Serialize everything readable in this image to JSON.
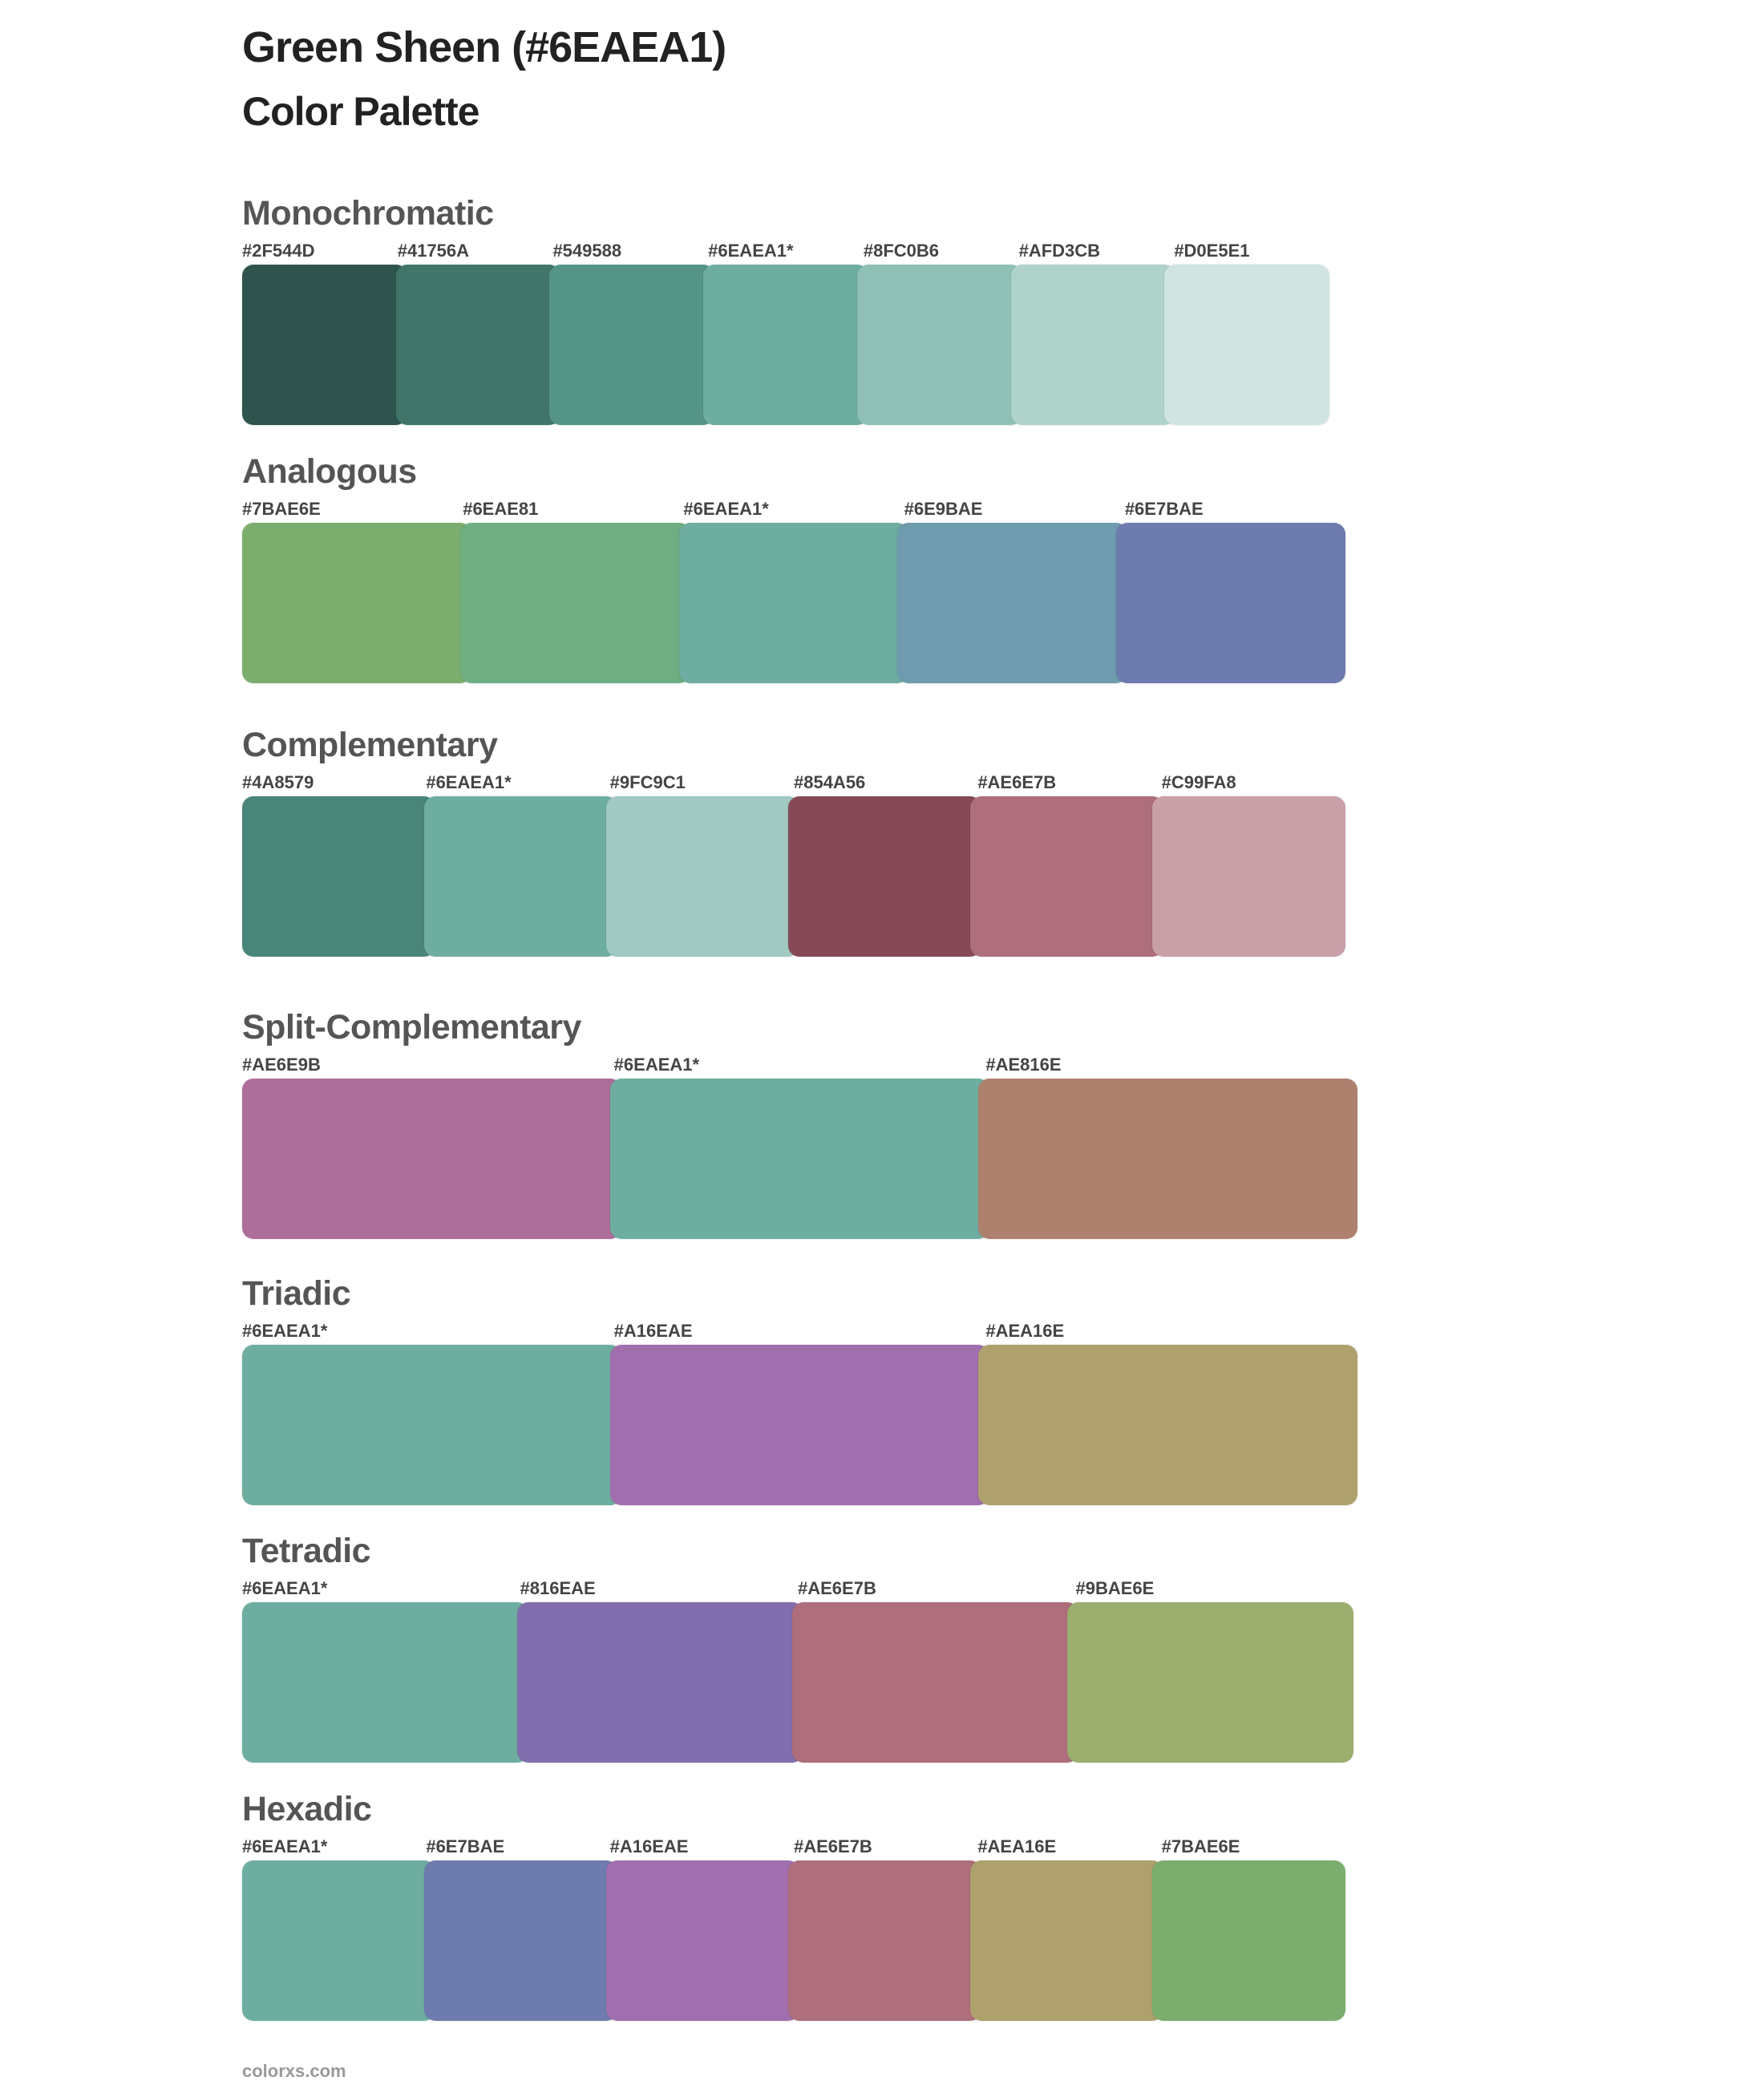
{
  "header": {
    "title": "Green Sheen (#6EAEA1)",
    "subtitle": "Color Palette"
  },
  "sections": [
    {
      "id": "monochromatic",
      "title": "Monochromatic",
      "colors": [
        {
          "label": "#2F544D",
          "hex": "#2F544D"
        },
        {
          "label": "#41756A",
          "hex": "#41756A"
        },
        {
          "label": "#549588",
          "hex": "#549588"
        },
        {
          "label": "#6EAEA1*",
          "hex": "#6EAEA1"
        },
        {
          "label": "#8FC0B6",
          "hex": "#8FC0B6"
        },
        {
          "label": "#AFD3CB",
          "hex": "#AFD3CB"
        },
        {
          "label": "#D0E5E1",
          "hex": "#D0E5E1"
        }
      ]
    },
    {
      "id": "analogous",
      "title": "Analogous",
      "colors": [
        {
          "label": "#7BAE6E",
          "hex": "#7BAE6E"
        },
        {
          "label": "#6EAE81",
          "hex": "#6EAE81"
        },
        {
          "label": "#6EAEA1*",
          "hex": "#6EAEA1"
        },
        {
          "label": "#6E9BAE",
          "hex": "#6E9BAE"
        },
        {
          "label": "#6E7BAE",
          "hex": "#6E7BAE"
        }
      ]
    },
    {
      "id": "complementary",
      "title": "Complementary",
      "colors": [
        {
          "label": "#4A8579",
          "hex": "#4A8579"
        },
        {
          "label": "#6EAEA1*",
          "hex": "#6EAEA1"
        },
        {
          "label": "#9FC9C1",
          "hex": "#9FC9C1"
        },
        {
          "label": "#854A56",
          "hex": "#854A56"
        },
        {
          "label": "#AE6E7B",
          "hex": "#AE6E7B"
        },
        {
          "label": "#C99FA8",
          "hex": "#C99FA8"
        }
      ]
    },
    {
      "id": "split-complementary",
      "title": "Split-Complementary",
      "colors": [
        {
          "label": "#AE6E9B",
          "hex": "#AE6E9B"
        },
        {
          "label": "#6EAEA1*",
          "hex": "#6EAEA1"
        },
        {
          "label": "#AE816E",
          "hex": "#AE816E"
        }
      ]
    },
    {
      "id": "triadic",
      "title": "Triadic",
      "colors": [
        {
          "label": "#6EAEA1*",
          "hex": "#6EAEA1"
        },
        {
          "label": "#A16EAE",
          "hex": "#A16EAE"
        },
        {
          "label": "#AEA16E",
          "hex": "#AEA16E"
        }
      ]
    },
    {
      "id": "tetradic",
      "title": "Tetradic",
      "colors": [
        {
          "label": "#6EAEA1*",
          "hex": "#6EAEA1"
        },
        {
          "label": "#816EAE",
          "hex": "#816EAE"
        },
        {
          "label": "#AE6E7B",
          "hex": "#AE6E7B"
        },
        {
          "label": "#9BAE6E",
          "hex": "#9BAE6E"
        }
      ]
    },
    {
      "id": "hexadic",
      "title": "Hexadic",
      "colors": [
        {
          "label": "#6EAEA1*",
          "hex": "#6EAEA1"
        },
        {
          "label": "#6E7BAE",
          "hex": "#6E7BAE"
        },
        {
          "label": "#A16EAE",
          "hex": "#A16EAE"
        },
        {
          "label": "#AE6E7B",
          "hex": "#AE6E7B"
        },
        {
          "label": "#AEA16E",
          "hex": "#AEA16E"
        },
        {
          "label": "#7BAE6E",
          "hex": "#7BAE6E"
        }
      ]
    }
  ],
  "footer": {
    "site": "colorxs.com"
  }
}
